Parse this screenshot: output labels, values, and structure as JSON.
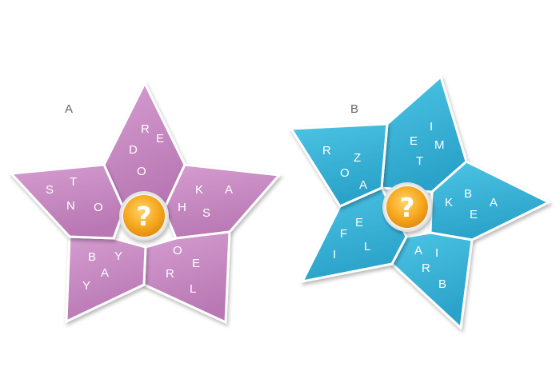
{
  "colors": {
    "puzzle_a_fill": "#c98ac4",
    "puzzle_a_shade": "#9c5e98",
    "puzzle_b_fill": "#35b5d8",
    "puzzle_b_shade": "#1d7fa5",
    "center_orange": "#f5a21b",
    "label_gray": "#666666"
  },
  "puzzle_a": {
    "label": "A",
    "center_symbol": "?",
    "petals": {
      "top": [
        "R",
        "D",
        "E",
        "O"
      ],
      "right": [
        "K",
        "A",
        "H",
        "S"
      ],
      "lower_right": [
        "O",
        "E",
        "R",
        "L"
      ],
      "lower_left": [
        "B",
        "Y",
        "Y",
        "A"
      ],
      "left": [
        "T",
        "S",
        "N",
        "O"
      ]
    }
  },
  "puzzle_b": {
    "label": "B",
    "center_symbol": "?",
    "petals": {
      "top_right": [
        "I",
        "E",
        "M",
        "T"
      ],
      "right": [
        "B",
        "K",
        "E",
        "A"
      ],
      "bottom": [
        "A",
        "I",
        "R",
        "B"
      ],
      "left": [
        "E",
        "F",
        "L",
        "I"
      ],
      "top_left": [
        "Z",
        "R",
        "O",
        "A"
      ]
    }
  }
}
